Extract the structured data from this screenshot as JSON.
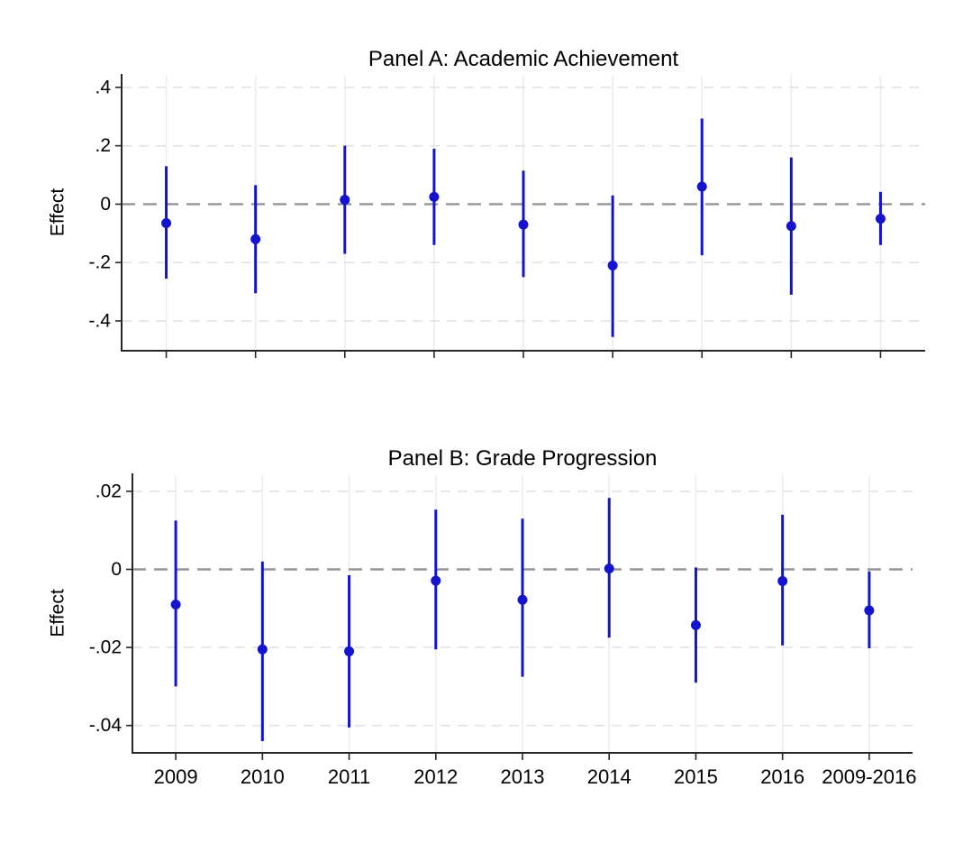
{
  "figure": {
    "description": "Two-panel coefficient plot of estimated effects by year with confidence intervals",
    "background": "#ffffff"
  },
  "colors": {
    "marker": "#1414cf",
    "ci_line": "#1414cf",
    "zero_line": "#959595",
    "gridline": "#e2e2e2",
    "vertical_gridline": "#ededed",
    "axis": "#262626",
    "text": "#000000"
  },
  "chart_data": [
    {
      "type": "scatter",
      "panel": "A",
      "title": "Panel A: Academic Achievement",
      "ylabel": "Effect",
      "xlabel": "",
      "categories": [
        "2009",
        "2010",
        "2011",
        "2012",
        "2013",
        "2014",
        "2015",
        "2016",
        "2009-2016"
      ],
      "show_x_tick_labels": false,
      "yticks": [
        0.4,
        0.2,
        0,
        -0.2,
        -0.4
      ],
      "ytick_labels": [
        ".4",
        ".2",
        "0",
        "-.2",
        "-.4"
      ],
      "ylim": [
        -0.502,
        0.446
      ],
      "grid": true,
      "zero_line": true,
      "legend": "none",
      "series": [
        {
          "name": "estimate",
          "values": [
            -0.065,
            -0.12,
            0.015,
            0.025,
            -0.07,
            -0.21,
            0.06,
            -0.075,
            -0.05
          ]
        },
        {
          "name": "ci_low",
          "values": [
            -0.255,
            -0.305,
            -0.17,
            -0.14,
            -0.25,
            -0.455,
            -0.175,
            -0.31,
            -0.14
          ]
        },
        {
          "name": "ci_high",
          "values": [
            0.13,
            0.065,
            0.2,
            0.19,
            0.115,
            0.03,
            0.293,
            0.16,
            0.042
          ]
        }
      ]
    },
    {
      "type": "scatter",
      "panel": "B",
      "title": "Panel B: Grade Progression",
      "ylabel": "Effect",
      "xlabel": "",
      "categories": [
        "2009",
        "2010",
        "2011",
        "2012",
        "2013",
        "2014",
        "2015",
        "2016",
        "2009-2016"
      ],
      "show_x_tick_labels": true,
      "yticks": [
        0.02,
        0,
        -0.02,
        -0.04
      ],
      "ytick_labels": [
        ".02",
        "0",
        "-.02",
        "-.04"
      ],
      "ylim": [
        -0.047,
        0.0246
      ],
      "grid": true,
      "zero_line": true,
      "legend": "none",
      "series": [
        {
          "name": "estimate",
          "values": [
            -0.009,
            -0.0205,
            -0.021,
            -0.0029,
            -0.0078,
            0.0002,
            -0.0143,
            -0.003,
            -0.0105
          ]
        },
        {
          "name": "ci_low",
          "values": [
            -0.03,
            -0.044,
            -0.0405,
            -0.0205,
            -0.0275,
            -0.0175,
            -0.029,
            -0.0195,
            -0.0202
          ]
        },
        {
          "name": "ci_high",
          "values": [
            0.0125,
            0.002,
            -0.0015,
            0.0153,
            0.013,
            0.0183,
            0.0005,
            0.014,
            -0.0005
          ]
        }
      ]
    }
  ]
}
